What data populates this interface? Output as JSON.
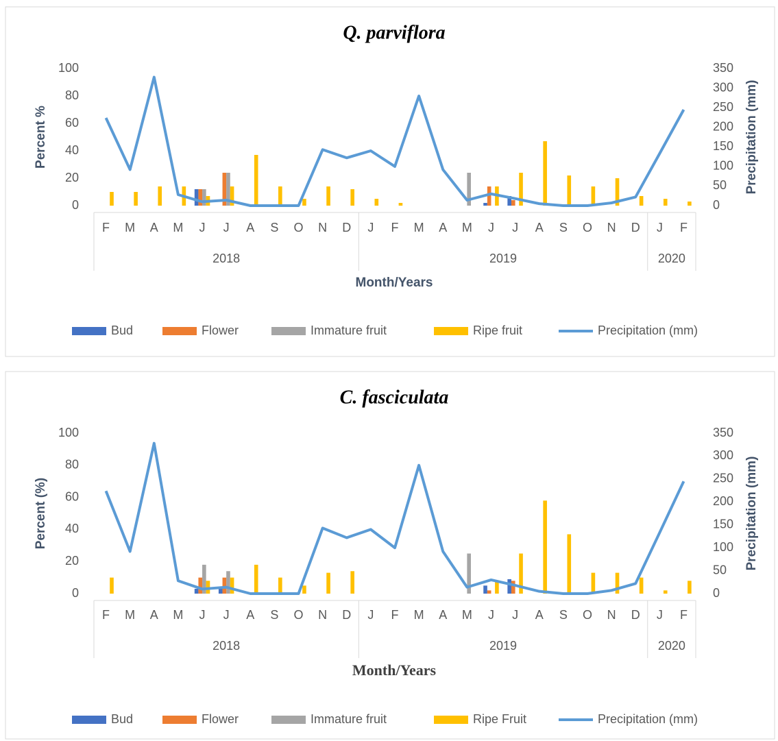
{
  "chart_data": [
    {
      "type": "bar_line",
      "title": "Q. parviflora",
      "y_label": "Percent %",
      "y2_label": "Precipitation (mm)",
      "x_label": "Month/Years",
      "category_groups": [
        {
          "label": "2018",
          "categories": [
            "F",
            "M",
            "A",
            "M",
            "J",
            "J",
            "A",
            "S",
            "O",
            "N",
            "D"
          ]
        },
        {
          "label": "2019",
          "categories": [
            "J",
            "F",
            "M",
            "A",
            "M",
            "J",
            "J",
            "A",
            "S",
            "O",
            "N",
            "D"
          ]
        },
        {
          "label": "2020",
          "categories": [
            "J",
            "F"
          ]
        }
      ],
      "series": [
        {
          "name": "Bud",
          "color": "#4472c4",
          "values": [
            0,
            0,
            0,
            0,
            12,
            0,
            0,
            0,
            0,
            0,
            0,
            0,
            0,
            0,
            0,
            0,
            2,
            7,
            0,
            0,
            0,
            0,
            0,
            0,
            0
          ]
        },
        {
          "name": "Flower",
          "color": "#ed7d31",
          "values": [
            0,
            0,
            0,
            0,
            12,
            24,
            0,
            0,
            0,
            0,
            0,
            0,
            0,
            0,
            0,
            0,
            14,
            4,
            0,
            0,
            0,
            0,
            0,
            0,
            0
          ]
        },
        {
          "name": "Immature fruit",
          "color": "#a5a5a5",
          "values": [
            0,
            0,
            0,
            0,
            12,
            24,
            0,
            0,
            0,
            0,
            0,
            0,
            0,
            0,
            0,
            24,
            0,
            0,
            0,
            0,
            0,
            0,
            0,
            0,
            0
          ]
        },
        {
          "name": "Ripe fruit",
          "color": "#ffc000",
          "values": [
            10,
            10,
            14,
            14,
            7,
            14,
            37,
            14,
            5,
            14,
            12,
            5,
            2,
            0,
            0,
            0,
            14,
            24,
            47,
            22,
            14,
            20,
            7,
            5,
            3
          ]
        },
        {
          "name": "Precipitation (mm)",
          "color": "#5b9bd5",
          "axis": "y2",
          "values": [
            224,
            92,
            328,
            28,
            10,
            14,
            0,
            0,
            0,
            143,
            122,
            140,
            100,
            280,
            92,
            14,
            30,
            18,
            5,
            0,
            0,
            7,
            22,
            133,
            245
          ]
        }
      ],
      "ylim": [
        0,
        100
      ],
      "yticks": [
        0,
        20,
        40,
        60,
        80,
        100
      ],
      "y2lim": [
        0,
        350
      ],
      "y2ticks": [
        0,
        50,
        100,
        150,
        200,
        250,
        300,
        350
      ],
      "legend": "bottom"
    },
    {
      "type": "bar_line",
      "title": "C. fasciculata",
      "y_label": "Percent (%)",
      "y2_label": "Precipitation (mm)",
      "x_label": "Month/Years",
      "category_groups": [
        {
          "label": "2018",
          "categories": [
            "F",
            "M",
            "A",
            "M",
            "J",
            "J",
            "A",
            "S",
            "O",
            "N",
            "D"
          ]
        },
        {
          "label": "2019",
          "categories": [
            "J",
            "F",
            "M",
            "A",
            "M",
            "J",
            "J",
            "A",
            "S",
            "O",
            "N",
            "D"
          ]
        },
        {
          "label": "2020",
          "categories": [
            "J",
            "F"
          ]
        }
      ],
      "series": [
        {
          "name": "Bud",
          "color": "#4472c4",
          "values": [
            0,
            0,
            0,
            0,
            3,
            3,
            0,
            0,
            0,
            0,
            0,
            0,
            0,
            0,
            0,
            0,
            5,
            9,
            0,
            0,
            0,
            0,
            0,
            0,
            0
          ]
        },
        {
          "name": "Flower",
          "color": "#ed7d31",
          "values": [
            0,
            0,
            0,
            0,
            10,
            10,
            0,
            0,
            0,
            0,
            0,
            0,
            0,
            0,
            0,
            0,
            2,
            8,
            0,
            0,
            0,
            0,
            0,
            0,
            0
          ]
        },
        {
          "name": "Immature fruit",
          "color": "#a5a5a5",
          "values": [
            0,
            0,
            0,
            0,
            18,
            14,
            0,
            0,
            0,
            0,
            0,
            0,
            0,
            0,
            0,
            25,
            0,
            0,
            0,
            0,
            0,
            0,
            0,
            0,
            0
          ]
        },
        {
          "name": "Ripe Fruit",
          "color": "#ffc000",
          "values": [
            10,
            0,
            0,
            0,
            8,
            10,
            18,
            10,
            5,
            13,
            14,
            0,
            0,
            0,
            0,
            0,
            8,
            25,
            58,
            37,
            13,
            13,
            10,
            2,
            8
          ]
        },
        {
          "name": "Precipitation (mm)",
          "color": "#5b9bd5",
          "axis": "y2",
          "values": [
            224,
            92,
            328,
            28,
            10,
            14,
            0,
            0,
            0,
            143,
            122,
            140,
            100,
            280,
            92,
            14,
            30,
            18,
            5,
            0,
            0,
            7,
            22,
            133,
            245
          ]
        }
      ],
      "ylim": [
        0,
        100
      ],
      "yticks": [
        0,
        20,
        40,
        60,
        80,
        100
      ],
      "y2lim": [
        0,
        350
      ],
      "y2ticks": [
        0,
        50,
        100,
        150,
        200,
        250,
        300,
        350
      ],
      "legend": "bottom"
    }
  ]
}
